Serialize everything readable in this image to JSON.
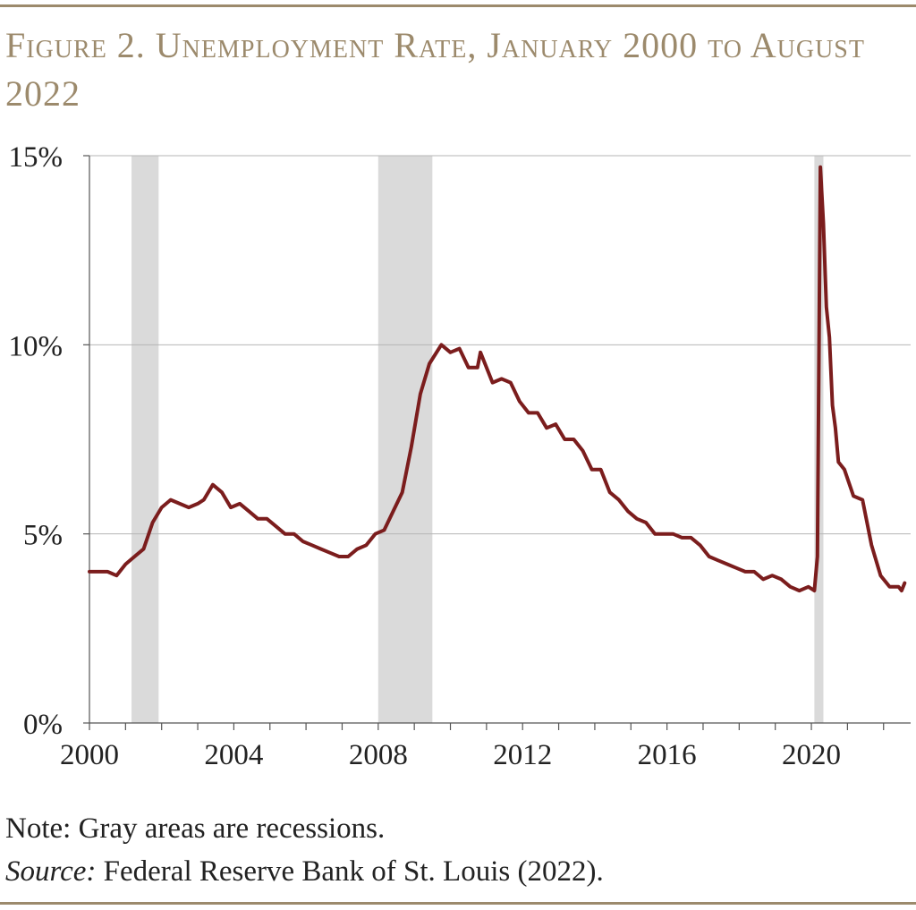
{
  "header": {
    "title": "Figure 2. Unemployment Rate, January 2000 to August 2022"
  },
  "footer": {
    "note": "Note: Gray areas are recessions.",
    "source_label": "Source:",
    "source_text": " Federal Reserve Bank of St. Louis (2022)."
  },
  "colors": {
    "line": "#7b1d1d",
    "recession": "#dadada",
    "grid": "#b5b5b5",
    "axis": "#555555",
    "accent": "#9c8a6c"
  },
  "chart_data": {
    "type": "line",
    "xlabel": "",
    "ylabel": "",
    "xlim": [
      2000.0,
      2022.75
    ],
    "ylim": [
      0,
      15
    ],
    "y_ticks": [
      0,
      5,
      10,
      15
    ],
    "y_tick_labels": [
      "0%",
      "5%",
      "10%",
      "15%"
    ],
    "x_ticks": [
      2000,
      2004,
      2008,
      2012,
      2016,
      2020
    ],
    "x_tick_labels": [
      "2000",
      "2004",
      "2008",
      "2012",
      "2016",
      "2020"
    ],
    "grid": "horizontal",
    "recessions": [
      {
        "start": "2001-03",
        "end": "2001-11"
      },
      {
        "start": "2008-01",
        "end": "2009-06"
      },
      {
        "start": "2020-02",
        "end": "2020-04"
      }
    ],
    "series": [
      {
        "points": [
          [
            "2000-01",
            4.0
          ],
          [
            "2000-04",
            4.0
          ],
          [
            "2000-07",
            4.0
          ],
          [
            "2000-10",
            3.9
          ],
          [
            "2001-01",
            4.2
          ],
          [
            "2001-04",
            4.4
          ],
          [
            "2001-07",
            4.6
          ],
          [
            "2001-10",
            5.3
          ],
          [
            "2002-01",
            5.7
          ],
          [
            "2002-04",
            5.9
          ],
          [
            "2002-07",
            5.8
          ],
          [
            "2002-10",
            5.7
          ],
          [
            "2003-01",
            5.8
          ],
          [
            "2003-03",
            5.9
          ],
          [
            "2003-06",
            6.3
          ],
          [
            "2003-09",
            6.1
          ],
          [
            "2003-12",
            5.7
          ],
          [
            "2004-03",
            5.8
          ],
          [
            "2004-06",
            5.6
          ],
          [
            "2004-09",
            5.4
          ],
          [
            "2004-12",
            5.4
          ],
          [
            "2005-03",
            5.2
          ],
          [
            "2005-06",
            5.0
          ],
          [
            "2005-09",
            5.0
          ],
          [
            "2005-12",
            4.8
          ],
          [
            "2006-03",
            4.7
          ],
          [
            "2006-06",
            4.6
          ],
          [
            "2006-09",
            4.5
          ],
          [
            "2006-12",
            4.4
          ],
          [
            "2007-03",
            4.4
          ],
          [
            "2007-06",
            4.6
          ],
          [
            "2007-09",
            4.7
          ],
          [
            "2007-12",
            5.0
          ],
          [
            "2008-03",
            5.1
          ],
          [
            "2008-06",
            5.6
          ],
          [
            "2008-09",
            6.1
          ],
          [
            "2008-12",
            7.3
          ],
          [
            "2009-03",
            8.7
          ],
          [
            "2009-06",
            9.5
          ],
          [
            "2009-10",
            10.0
          ],
          [
            "2010-01",
            9.8
          ],
          [
            "2010-04",
            9.9
          ],
          [
            "2010-07",
            9.4
          ],
          [
            "2010-10",
            9.4
          ],
          [
            "2010-11",
            9.8
          ],
          [
            "2011-03",
            9.0
          ],
          [
            "2011-06",
            9.1
          ],
          [
            "2011-09",
            9.0
          ],
          [
            "2011-12",
            8.5
          ],
          [
            "2012-03",
            8.2
          ],
          [
            "2012-06",
            8.2
          ],
          [
            "2012-09",
            7.8
          ],
          [
            "2012-12",
            7.9
          ],
          [
            "2013-03",
            7.5
          ],
          [
            "2013-06",
            7.5
          ],
          [
            "2013-09",
            7.2
          ],
          [
            "2013-12",
            6.7
          ],
          [
            "2014-03",
            6.7
          ],
          [
            "2014-06",
            6.1
          ],
          [
            "2014-09",
            5.9
          ],
          [
            "2014-12",
            5.6
          ],
          [
            "2015-03",
            5.4
          ],
          [
            "2015-06",
            5.3
          ],
          [
            "2015-09",
            5.0
          ],
          [
            "2015-12",
            5.0
          ],
          [
            "2016-03",
            5.0
          ],
          [
            "2016-06",
            4.9
          ],
          [
            "2016-09",
            4.9
          ],
          [
            "2016-12",
            4.7
          ],
          [
            "2017-03",
            4.4
          ],
          [
            "2017-06",
            4.3
          ],
          [
            "2017-09",
            4.2
          ],
          [
            "2017-12",
            4.1
          ],
          [
            "2018-03",
            4.0
          ],
          [
            "2018-06",
            4.0
          ],
          [
            "2018-09",
            3.8
          ],
          [
            "2018-12",
            3.9
          ],
          [
            "2019-03",
            3.8
          ],
          [
            "2019-06",
            3.6
          ],
          [
            "2019-09",
            3.5
          ],
          [
            "2019-12",
            3.6
          ],
          [
            "2020-02",
            3.5
          ],
          [
            "2020-03",
            4.4
          ],
          [
            "2020-04",
            14.7
          ],
          [
            "2020-05",
            13.2
          ],
          [
            "2020-06",
            11.0
          ],
          [
            "2020-07",
            10.2
          ],
          [
            "2020-08",
            8.4
          ],
          [
            "2020-09",
            7.8
          ],
          [
            "2020-10",
            6.9
          ],
          [
            "2020-12",
            6.7
          ],
          [
            "2021-03",
            6.0
          ],
          [
            "2021-06",
            5.9
          ],
          [
            "2021-09",
            4.7
          ],
          [
            "2021-12",
            3.9
          ],
          [
            "2022-03",
            3.6
          ],
          [
            "2022-06",
            3.6
          ],
          [
            "2022-07",
            3.5
          ],
          [
            "2022-08",
            3.7
          ]
        ]
      }
    ]
  }
}
